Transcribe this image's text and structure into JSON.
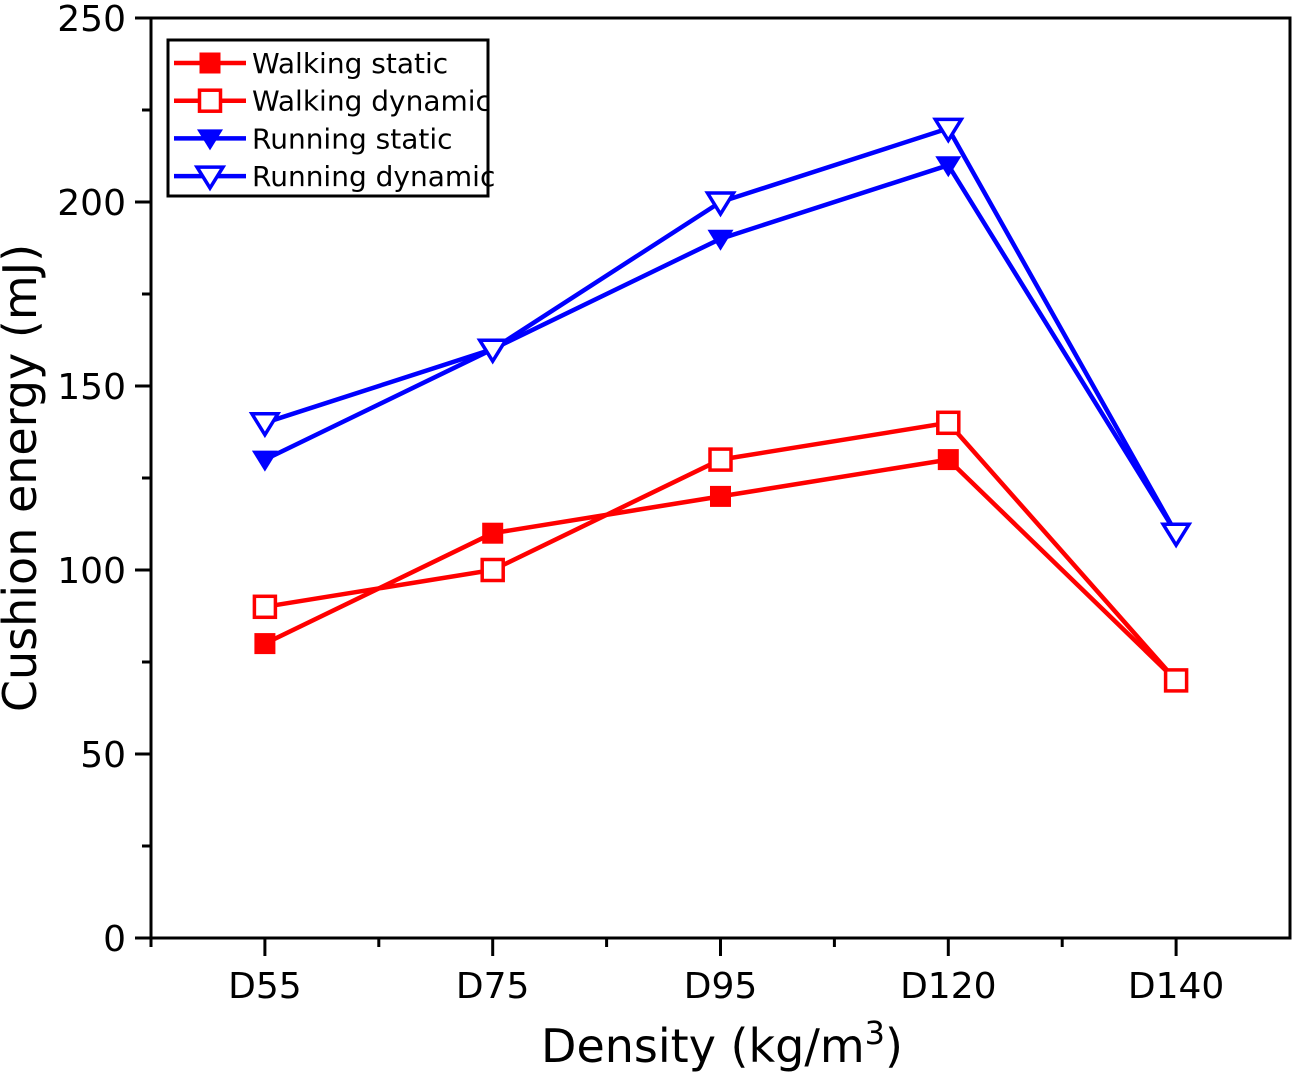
{
  "chart_data": {
    "type": "line",
    "title": "",
    "categories": [
      "D55",
      "D75",
      "D95",
      "D120",
      "D140"
    ],
    "series": [
      {
        "name": "Walking static",
        "color": "#ff0000",
        "marker": "square-filled",
        "values": [
          80,
          110,
          120,
          130,
          70
        ]
      },
      {
        "name": "Walking dynamic",
        "color": "#ff0000",
        "marker": "square-open",
        "values": [
          90,
          100,
          130,
          140,
          70
        ]
      },
      {
        "name": "Running static",
        "color": "#0000ff",
        "marker": "triangle-down-filled",
        "values": [
          130,
          160,
          190,
          210,
          110
        ]
      },
      {
        "name": "Running dynamic",
        "color": "#0000ff",
        "marker": "triangle-down-open",
        "values": [
          140,
          160,
          200,
          220,
          110
        ]
      }
    ],
    "xlabel": "Density (kg/m³)",
    "xlabel_parts": {
      "base": "Density (kg/m",
      "sup": "3",
      "suffix": ")"
    },
    "ylabel": "Cushion energy (mJ)",
    "ylim": [
      0,
      250
    ],
    "yticks": [
      0,
      50,
      100,
      150,
      200,
      250
    ],
    "y_minor_ticks": [
      25,
      75,
      125,
      175,
      225
    ],
    "grid": false,
    "legend_position": "top-left",
    "colors": {
      "axis": "#000000",
      "text": "#000000",
      "background": "#ffffff",
      "walking": "#ff0000",
      "running": "#0000ff"
    }
  }
}
